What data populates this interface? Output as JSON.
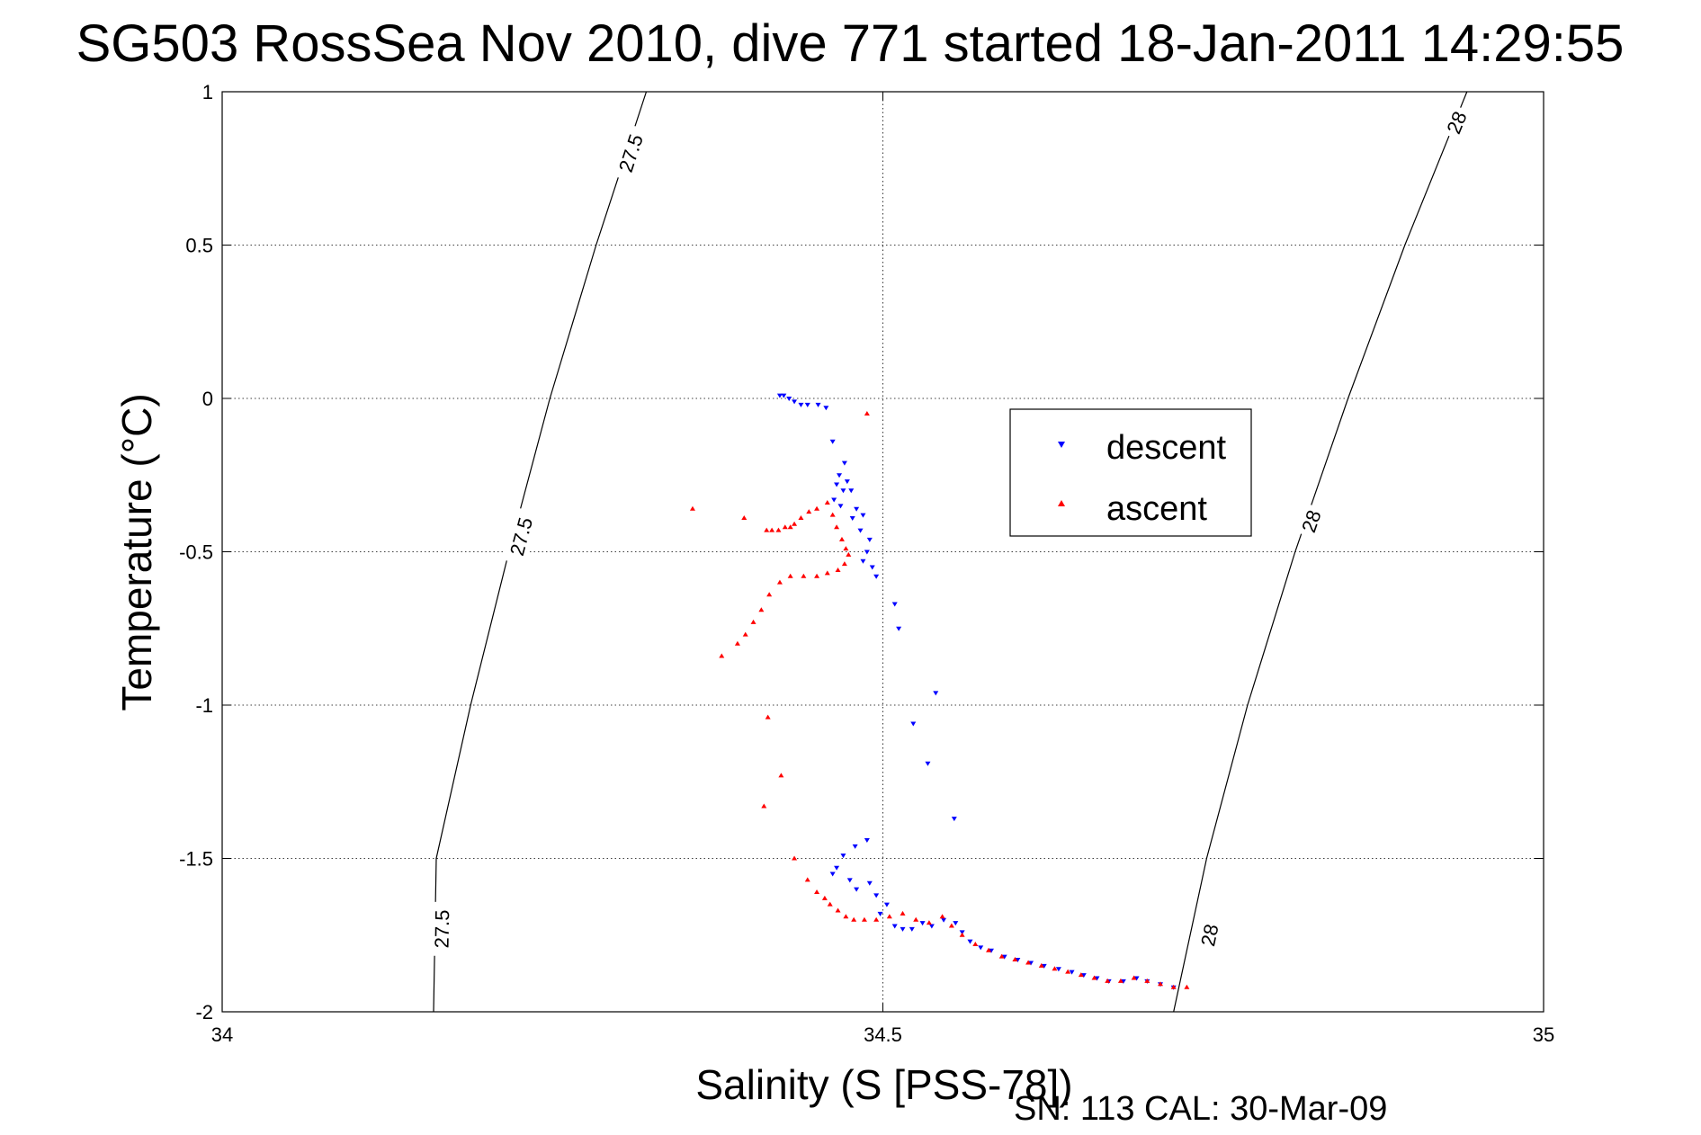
{
  "chart_data": {
    "type": "scatter",
    "title": "SG503 RossSea Nov 2010, dive 771 started 18-Jan-2011 14:29:55",
    "xlabel": "Salinity (S [PSS-78])",
    "ylabel": "Temperature (°C)",
    "xlim": [
      34,
      35
    ],
    "ylim": [
      -2,
      1
    ],
    "x_ticks": [
      "34",
      "34.5",
      "35"
    ],
    "y_ticks": [
      "1",
      "0.5",
      "0",
      "-0.5",
      "-1",
      "-1.5",
      "-2"
    ],
    "grid": true,
    "legend_position": "upper-right of center",
    "footer": "SN: 113  CAL: 30-Mar-09",
    "contours": [
      {
        "label": "27.5",
        "points": [
          [
            34.321,
            1.0
          ],
          [
            34.283,
            0.5
          ],
          [
            34.248,
            0.0
          ],
          [
            34.217,
            -0.5
          ],
          [
            34.188,
            -1.0
          ],
          [
            34.162,
            -1.5
          ],
          [
            34.16,
            -2.0
          ]
        ]
      },
      {
        "label": "28",
        "points": [
          [
            34.942,
            1.0
          ],
          [
            34.895,
            0.5
          ],
          [
            34.852,
            0.0
          ],
          [
            34.812,
            -0.5
          ],
          [
            34.776,
            -1.0
          ],
          [
            34.745,
            -1.5
          ],
          [
            34.72,
            -2.0
          ]
        ]
      }
    ],
    "contour_label_positions": [
      {
        "contour": 0,
        "label": "27.5",
        "x": 34.309,
        "y": 0.8
      },
      {
        "contour": 0,
        "label": "27.5",
        "x": 34.226,
        "y": -0.45
      },
      {
        "contour": 0,
        "label": "27.5",
        "x": 34.166,
        "y": -1.73
      },
      {
        "contour": 1,
        "label": "28",
        "x": 34.934,
        "y": 0.9
      },
      {
        "contour": 1,
        "label": "28",
        "x": 34.824,
        "y": -0.4
      },
      {
        "contour": 1,
        "label": "28",
        "x": 34.747,
        "y": -1.75
      }
    ],
    "series": [
      {
        "name": "descent",
        "color": "#0000ff",
        "marker": "triangle-down",
        "points": [
          [
            34.422,
            0.01
          ],
          [
            34.425,
            0.01
          ],
          [
            34.429,
            0.0
          ],
          [
            34.433,
            -0.01
          ],
          [
            34.438,
            -0.02
          ],
          [
            34.443,
            -0.02
          ],
          [
            34.451,
            -0.02
          ],
          [
            34.457,
            -0.03
          ],
          [
            34.462,
            -0.14
          ],
          [
            34.471,
            -0.21
          ],
          [
            34.467,
            -0.25
          ],
          [
            34.473,
            -0.27
          ],
          [
            34.465,
            -0.28
          ],
          [
            34.47,
            -0.3
          ],
          [
            34.476,
            -0.3
          ],
          [
            34.463,
            -0.33
          ],
          [
            34.468,
            -0.35
          ],
          [
            34.48,
            -0.36
          ],
          [
            34.485,
            -0.38
          ],
          [
            34.477,
            -0.39
          ],
          [
            34.483,
            -0.43
          ],
          [
            34.49,
            -0.46
          ],
          [
            34.488,
            -0.5
          ],
          [
            34.485,
            -0.53
          ],
          [
            34.492,
            -0.55
          ],
          [
            34.495,
            -0.58
          ],
          [
            34.509,
            -0.67
          ],
          [
            34.512,
            -0.75
          ],
          [
            34.54,
            -0.96
          ],
          [
            34.523,
            -1.06
          ],
          [
            34.534,
            -1.19
          ],
          [
            34.554,
            -1.37
          ],
          [
            34.465,
            -1.53
          ],
          [
            34.47,
            -1.49
          ],
          [
            34.479,
            -1.46
          ],
          [
            34.488,
            -1.44
          ],
          [
            34.475,
            -1.57
          ],
          [
            34.462,
            -1.55
          ],
          [
            34.48,
            -1.6
          ],
          [
            34.49,
            -1.58
          ],
          [
            34.495,
            -1.62
          ],
          [
            34.503,
            -1.65
          ],
          [
            34.498,
            -1.68
          ],
          [
            34.509,
            -1.72
          ],
          [
            34.515,
            -1.73
          ],
          [
            34.522,
            -1.73
          ],
          [
            34.53,
            -1.71
          ],
          [
            34.537,
            -1.72
          ],
          [
            34.546,
            -1.7
          ],
          [
            34.555,
            -1.71
          ],
          [
            34.56,
            -1.74
          ],
          [
            34.566,
            -1.77
          ],
          [
            34.574,
            -1.79
          ],
          [
            34.582,
            -1.8
          ],
          [
            34.592,
            -1.82
          ],
          [
            34.602,
            -1.83
          ],
          [
            34.612,
            -1.84
          ],
          [
            34.622,
            -1.85
          ],
          [
            34.633,
            -1.86
          ],
          [
            34.643,
            -1.87
          ],
          [
            34.652,
            -1.88
          ],
          [
            34.662,
            -1.89
          ],
          [
            34.671,
            -1.9
          ],
          [
            34.682,
            -1.9
          ],
          [
            34.692,
            -1.89
          ],
          [
            34.7,
            -1.9
          ],
          [
            34.71,
            -1.91
          ],
          [
            34.72,
            -1.92
          ]
        ]
      },
      {
        "name": "ascent",
        "color": "#ff0000",
        "marker": "triangle-up",
        "points": [
          [
            34.488,
            -0.05
          ],
          [
            34.356,
            -0.36
          ],
          [
            34.395,
            -0.39
          ],
          [
            34.412,
            -0.43
          ],
          [
            34.416,
            -0.43
          ],
          [
            34.421,
            -0.43
          ],
          [
            34.426,
            -0.42
          ],
          [
            34.43,
            -0.42
          ],
          [
            34.433,
            -0.41
          ],
          [
            34.438,
            -0.39
          ],
          [
            34.444,
            -0.37
          ],
          [
            34.45,
            -0.36
          ],
          [
            34.458,
            -0.34
          ],
          [
            34.462,
            -0.38
          ],
          [
            34.465,
            -0.42
          ],
          [
            34.469,
            -0.46
          ],
          [
            34.472,
            -0.49
          ],
          [
            34.474,
            -0.51
          ],
          [
            34.471,
            -0.54
          ],
          [
            34.466,
            -0.56
          ],
          [
            34.458,
            -0.57
          ],
          [
            34.45,
            -0.58
          ],
          [
            34.44,
            -0.58
          ],
          [
            34.43,
            -0.58
          ],
          [
            34.422,
            -0.6
          ],
          [
            34.414,
            -0.64
          ],
          [
            34.408,
            -0.69
          ],
          [
            34.402,
            -0.73
          ],
          [
            34.396,
            -0.77
          ],
          [
            34.39,
            -0.8
          ],
          [
            34.378,
            -0.84
          ],
          [
            34.413,
            -1.04
          ],
          [
            34.423,
            -1.23
          ],
          [
            34.41,
            -1.33
          ],
          [
            34.433,
            -1.5
          ],
          [
            34.443,
            -1.57
          ],
          [
            34.45,
            -1.61
          ],
          [
            34.456,
            -1.63
          ],
          [
            34.46,
            -1.65
          ],
          [
            34.466,
            -1.67
          ],
          [
            34.472,
            -1.69
          ],
          [
            34.478,
            -1.7
          ],
          [
            34.486,
            -1.7
          ],
          [
            34.495,
            -1.7
          ],
          [
            34.505,
            -1.69
          ],
          [
            34.515,
            -1.68
          ],
          [
            34.525,
            -1.7
          ],
          [
            34.535,
            -1.71
          ],
          [
            34.545,
            -1.69
          ],
          [
            34.552,
            -1.72
          ],
          [
            34.56,
            -1.75
          ],
          [
            34.57,
            -1.78
          ],
          [
            34.58,
            -1.8
          ],
          [
            34.59,
            -1.82
          ],
          [
            34.6,
            -1.83
          ],
          [
            34.61,
            -1.84
          ],
          [
            34.62,
            -1.85
          ],
          [
            34.63,
            -1.86
          ],
          [
            34.64,
            -1.87
          ],
          [
            34.65,
            -1.88
          ],
          [
            34.66,
            -1.89
          ],
          [
            34.67,
            -1.9
          ],
          [
            34.68,
            -1.9
          ],
          [
            34.69,
            -1.89
          ],
          [
            34.7,
            -1.9
          ],
          [
            34.71,
            -1.91
          ],
          [
            34.72,
            -1.92
          ],
          [
            34.73,
            -1.92
          ]
        ]
      }
    ]
  }
}
